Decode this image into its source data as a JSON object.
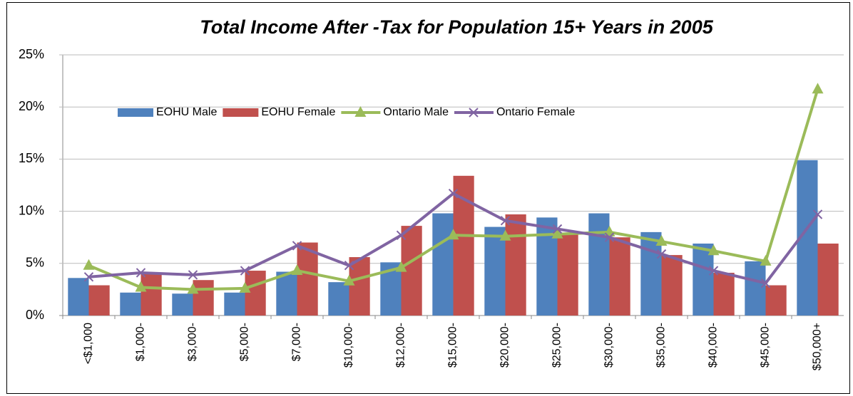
{
  "chart_data": {
    "type": "bar",
    "title": "Total Income After -Tax for Population 15+ Years in 2005",
    "categories": [
      "<$1,000",
      "$1,000-",
      "$3,000-",
      "$5,000-",
      "$7,000-",
      "$10,000-",
      "$12,000-",
      "$15,000-",
      "$20,000-",
      "$25,000-",
      "$30,000-",
      "$35,000-",
      "$40,000-",
      "$45,000-",
      "$50,000+"
    ],
    "series": [
      {
        "name": "EOHU Male",
        "type": "bar",
        "color": "#4f81bd",
        "values": [
          3.6,
          2.2,
          2.1,
          2.2,
          4.2,
          3.2,
          5.1,
          9.8,
          8.5,
          9.4,
          9.8,
          8.0,
          6.9,
          5.2,
          14.9
        ]
      },
      {
        "name": "EOHU Female",
        "type": "bar",
        "color": "#c0504d",
        "values": [
          2.9,
          4.0,
          3.4,
          4.3,
          7.0,
          5.6,
          8.6,
          13.4,
          9.7,
          7.8,
          7.5,
          5.8,
          4.1,
          2.9,
          6.9
        ]
      },
      {
        "name": "Ontario Male",
        "type": "line",
        "marker": "triangle",
        "color": "#9bbb59",
        "values": [
          4.8,
          2.7,
          2.5,
          2.6,
          4.3,
          3.3,
          4.6,
          7.7,
          7.6,
          7.8,
          8.0,
          7.1,
          6.2,
          5.2,
          21.7
        ]
      },
      {
        "name": "Ontario Female",
        "type": "line",
        "marker": "x",
        "color": "#8064a2",
        "values": [
          3.7,
          4.1,
          3.9,
          4.3,
          6.7,
          4.8,
          7.7,
          11.7,
          9.1,
          8.3,
          7.5,
          5.9,
          4.3,
          3.1,
          9.7
        ]
      }
    ],
    "ylim": [
      0,
      25
    ],
    "yticks": [
      {
        "value": 0,
        "label": "0%"
      },
      {
        "value": 5,
        "label": "5%"
      },
      {
        "value": 10,
        "label": "10%"
      },
      {
        "value": 15,
        "label": "15%"
      },
      {
        "value": 20,
        "label": "20%"
      },
      {
        "value": 25,
        "label": "25%"
      }
    ],
    "grid": true,
    "legend": "top"
  }
}
